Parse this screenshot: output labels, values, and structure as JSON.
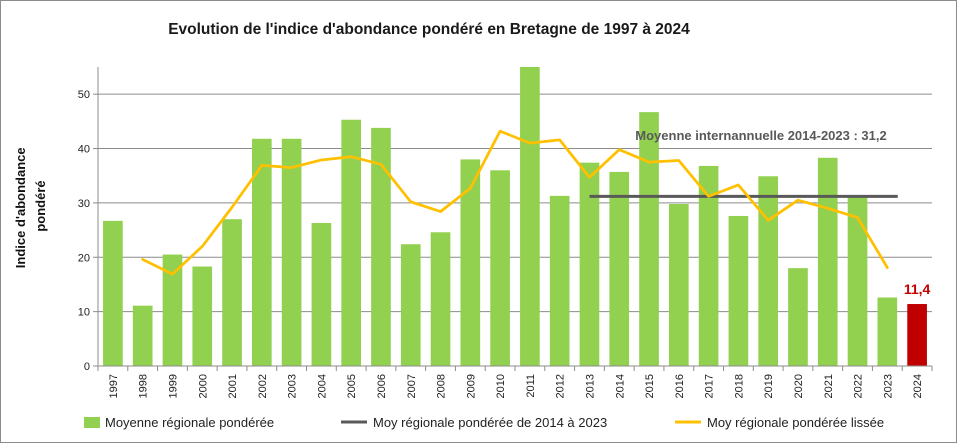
{
  "chart_data": {
    "type": "bar",
    "title": "Evolution de l'indice d'abondance pondéré en Bretagne de 1997 à 2024",
    "ylabel": "Indice d'abondance pondéré",
    "ylabel_lines": [
      "Indice d'abondance",
      "pondéré"
    ],
    "xlabel": "",
    "ylim": [
      0,
      55
    ],
    "yticks": [
      0,
      10,
      20,
      30,
      40,
      50
    ],
    "grid": true,
    "legend_position": "bottom",
    "categories": [
      "1997",
      "1998",
      "1999",
      "2000",
      "2001",
      "2002",
      "2003",
      "2004",
      "2005",
      "2006",
      "2007",
      "2008",
      "2009",
      "2010",
      "2011",
      "2012",
      "2013",
      "2014",
      "2015",
      "2016",
      "2017",
      "2018",
      "2019",
      "2020",
      "2021",
      "2022",
      "2023",
      "2024"
    ],
    "series": [
      {
        "name": "Moyenne régionale pondérée",
        "kind": "bar",
        "color": "#92d050",
        "highlight": {
          "category": "2024",
          "color": "#c00000"
        },
        "values": [
          26.7,
          11.1,
          20.5,
          18.3,
          27.0,
          41.8,
          41.8,
          26.3,
          45.3,
          43.8,
          22.4,
          24.6,
          38.0,
          36.0,
          55.0,
          31.3,
          37.4,
          35.7,
          46.7,
          29.8,
          36.8,
          27.6,
          34.9,
          18.0,
          38.3,
          31.3,
          12.6,
          11.4
        ]
      },
      {
        "name": "Moy régionale pondérée de 2014 à 2023",
        "kind": "hline",
        "color": "#595959",
        "value": 31.2,
        "x_from": "2013",
        "x_to": "2023"
      },
      {
        "name": "Moy régionale pondérée lissée",
        "kind": "line",
        "color": "#ffc000",
        "values": [
          null,
          19.6,
          16.9,
          22.0,
          29.2,
          36.9,
          36.5,
          37.9,
          38.5,
          37.1,
          30.2,
          28.4,
          32.7,
          43.2,
          41.0,
          41.6,
          34.7,
          39.8,
          37.5,
          37.8,
          31.2,
          33.3,
          26.8,
          30.5,
          29.0,
          27.3,
          18.1,
          null
        ]
      }
    ],
    "annotations": [
      {
        "text": "Moyenne internannuelle 2014-2023 : 31,2"
      },
      {
        "text": "11,4",
        "category": "2024"
      }
    ]
  }
}
